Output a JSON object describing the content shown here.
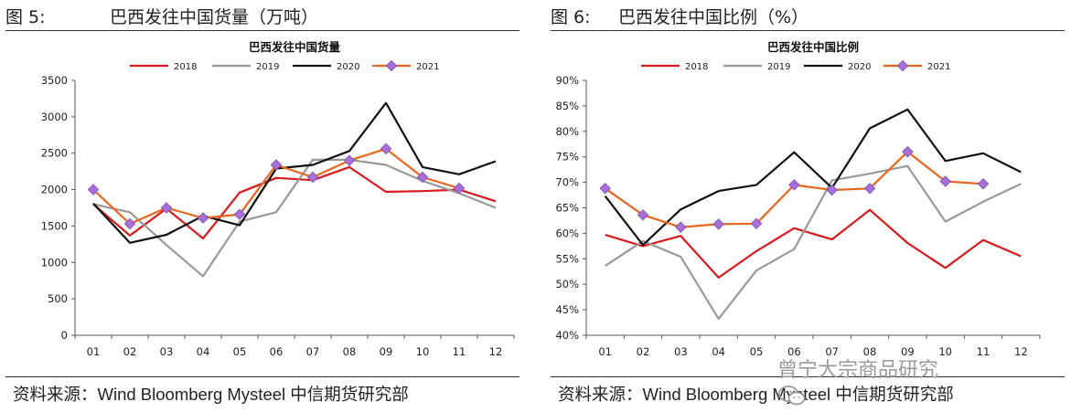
{
  "panels": [
    {
      "fig_label": "图 5:",
      "fig_title": "巴西发往中国货量（万吨）",
      "source": "资料来源：Wind Bloomberg Mysteel 中信期货研究部"
    },
    {
      "fig_label": "图 6:",
      "fig_title": "巴西发往中国比例（%）",
      "source": "资料来源：Wind Bloomberg Mysteel 中信期货研究部"
    }
  ],
  "watermark": "曾宁大宗商品研究",
  "colors": {
    "2018": "#d7191c",
    "2019": "#999999",
    "2020": "#111111",
    "2021": "#e8661e",
    "marker": "#a86fd9"
  },
  "chart_data": [
    {
      "type": "line",
      "title": "巴西发往中国货量",
      "categories": [
        "01",
        "02",
        "03",
        "04",
        "05",
        "06",
        "07",
        "08",
        "09",
        "10",
        "11",
        "12"
      ],
      "ylim": [
        0,
        3500
      ],
      "yticks": [
        0,
        500,
        1000,
        1500,
        2000,
        2500,
        3000,
        3500
      ],
      "ytick_labels": [
        "0",
        "500",
        "1000",
        "1500",
        "2000",
        "2500",
        "3000",
        "3500"
      ],
      "legend_position": "top",
      "series": [
        {
          "name": "2018",
          "values": [
            1800,
            1370,
            1740,
            1330,
            1960,
            2160,
            2130,
            2310,
            1970,
            1980,
            2000,
            1840
          ]
        },
        {
          "name": "2019",
          "values": [
            1800,
            1690,
            1240,
            810,
            1560,
            1690,
            2410,
            2410,
            2340,
            2120,
            1950,
            1750
          ]
        },
        {
          "name": "2020",
          "values": [
            1810,
            1270,
            1380,
            1640,
            1510,
            2290,
            2340,
            2530,
            3190,
            2310,
            2210,
            2390
          ]
        },
        {
          "name": "2021",
          "values": [
            2000,
            1530,
            1750,
            1610,
            1660,
            2340,
            2170,
            2400,
            2560,
            2170,
            2020,
            null
          ]
        }
      ]
    },
    {
      "type": "line",
      "title": "巴西发往中国比例",
      "categories": [
        "01",
        "02",
        "03",
        "04",
        "05",
        "06",
        "07",
        "08",
        "09",
        "10",
        "11",
        "12"
      ],
      "ylim": [
        40,
        90
      ],
      "yticks": [
        40,
        45,
        50,
        55,
        60,
        65,
        70,
        75,
        80,
        85,
        90
      ],
      "ytick_labels": [
        "40%",
        "45%",
        "50%",
        "55%",
        "60%",
        "65%",
        "70%",
        "75%",
        "80%",
        "85%",
        "90%"
      ],
      "legend_position": "top",
      "series": [
        {
          "name": "2018",
          "values": [
            59.7,
            57.5,
            59.5,
            51.3,
            56.5,
            61.0,
            58.8,
            64.6,
            58.1,
            53.2,
            58.7,
            55.5
          ]
        },
        {
          "name": "2019",
          "values": [
            53.6,
            58.5,
            55.4,
            43.2,
            52.7,
            56.9,
            70.4,
            71.7,
            73.2,
            62.3,
            66.2,
            69.7
          ]
        },
        {
          "name": "2020",
          "values": [
            67.3,
            57.7,
            64.7,
            68.3,
            69.5,
            75.9,
            68.9,
            80.6,
            84.3,
            74.2,
            75.7,
            72.0
          ]
        },
        {
          "name": "2021",
          "values": [
            68.8,
            63.6,
            61.2,
            61.8,
            61.9,
            69.5,
            68.5,
            68.8,
            76.0,
            70.2,
            69.7,
            null
          ]
        }
      ]
    }
  ]
}
